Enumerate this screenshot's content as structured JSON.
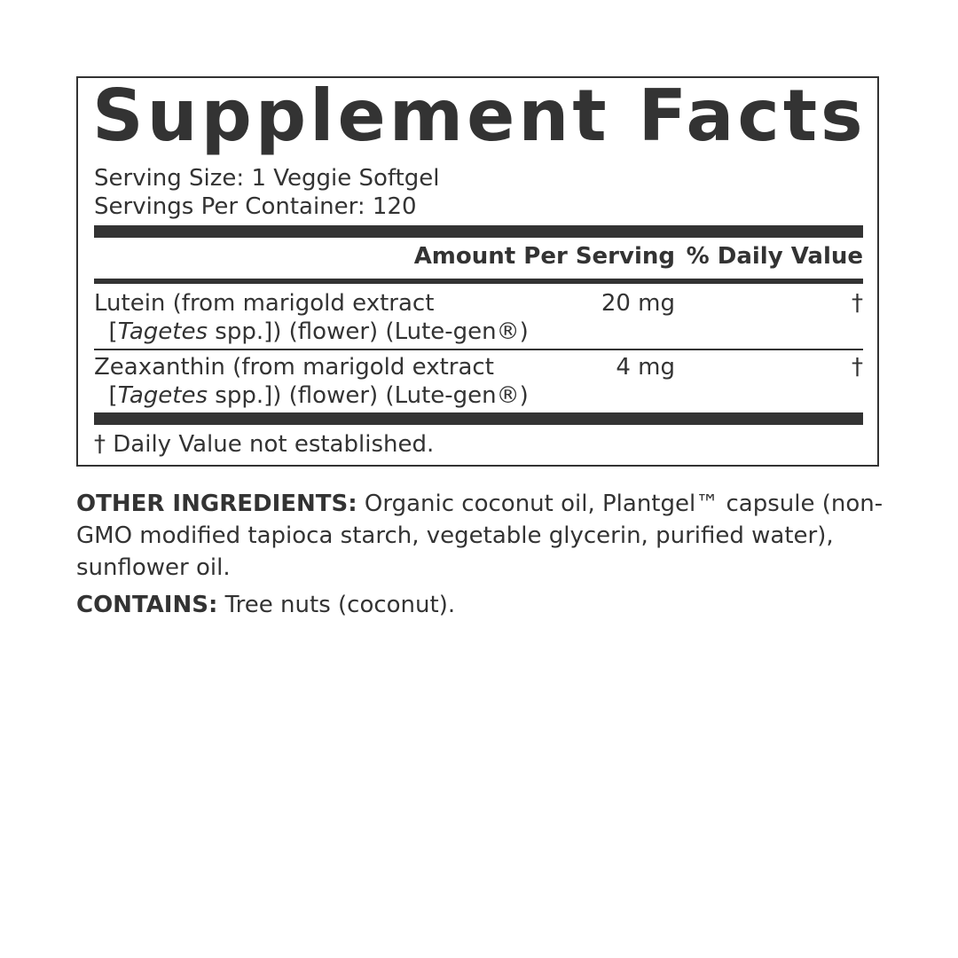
{
  "title": "Supplement Facts",
  "serving_size": "Serving Size: 1 Veggie Softgel",
  "servings_per_container": "Servings Per Container: 120",
  "header": {
    "amount": "Amount Per Serving",
    "dv": "% Daily Value"
  },
  "rows": [
    {
      "line1": "Lutein (from marigold extract",
      "line2_pre": "[",
      "line2_italic": "Tagetes",
      "line2_post": " spp.]) (flower) (Lute-gen®)",
      "amount": "20 mg",
      "dv": "†"
    },
    {
      "line1": "Zeaxanthin (from marigold extract",
      "line2_pre": "[",
      "line2_italic": "Tagetes",
      "line2_post": " spp.]) (flower) (Lute-gen®)",
      "amount": "4 mg",
      "dv": "†"
    }
  ],
  "footnote": "† Daily Value not established.",
  "other_label": "OTHER INGREDIENTS:",
  "other_text": " Organic coconut oil, Plantgel™ capsule (non-GMO modified tapioca starch, vegetable glycerin, purified water), sunflower oil.",
  "contains_label": "CONTAINS:",
  "contains_text": " Tree nuts (coconut)."
}
